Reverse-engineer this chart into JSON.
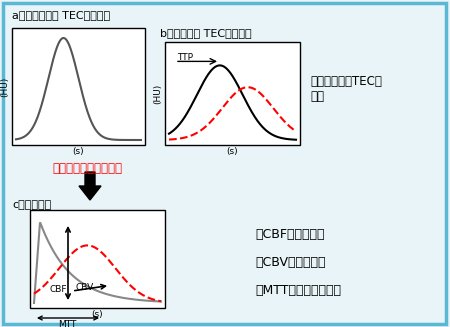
{
  "bg_color": "#e8f4f8",
  "border_color": "#5bb8d4",
  "label_a": "a：正常動脈の TEC（入力）",
  "label_b": "b：脳組織の TEC（出力）",
  "label_c": "c：伝達関数",
  "deconv_label": "デコンボリューション",
  "ischemia_line1": "虚血：脳組織TECが",
  "ischemia_line2": "遅延",
  "cbf_label": "・CBF：脳血流量",
  "cbv_label": "・CBV：脳血液量",
  "mtt_label": "・MTT：平均通過時間",
  "ttp_label": "TTP",
  "hu_label": "(HU)",
  "s_label": "(s)",
  "cbf_text": "CBF",
  "cbv_text": "CBV",
  "mtt_text": "MTT"
}
